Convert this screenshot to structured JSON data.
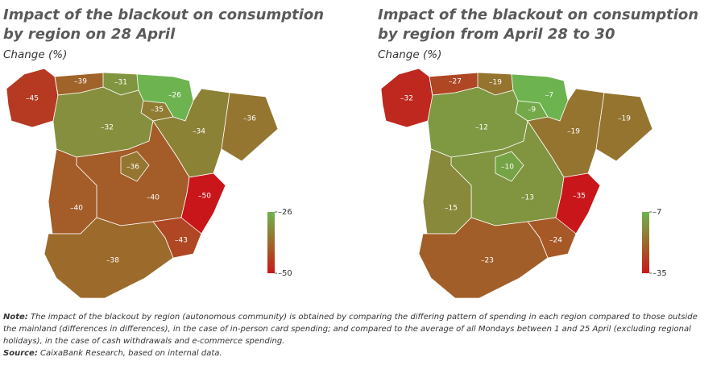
{
  "maps": [
    {
      "title": [
        "Impact of the blackout on consumption",
        "by region on 28 April"
      ],
      "subtitle": "Change (%)",
      "values": [
        -45,
        -39,
        -31,
        -26,
        -35,
        -32,
        -34,
        -36,
        -40,
        -36,
        -50,
        -40,
        -43,
        -38
      ],
      "value_labels": [
        "–45",
        "–39",
        "–31",
        "–26",
        "–35",
        "–32",
        "–34",
        "–36",
        "–40",
        "–36",
        "–50",
        "–40",
        "–43",
        "–38"
      ],
      "scale": [
        {
          "value": -50,
          "label": "–50"
        },
        {
          "value": -26,
          "label": "–26"
        }
      ]
    },
    {
      "title": [
        "Impact of the blackout on consumption",
        "by region from April 28 to 30"
      ],
      "subtitle": "Change (%)",
      "values": [
        -32,
        -27,
        -19,
        -7,
        -9,
        -12,
        -19,
        -19,
        -13,
        -10,
        -35,
        -15,
        -24,
        -23
      ],
      "value_labels": [
        "–32",
        "–27",
        "–19",
        "–7",
        "–9",
        "–12",
        "–19",
        "–19",
        "–13",
        "–10",
        "–35",
        "–15",
        "–24",
        "–23"
      ],
      "scale": [
        {
          "value": -35,
          "label": "–35"
        },
        {
          "value": -7,
          "label": "–7"
        }
      ]
    }
  ],
  "colors": [
    "#c9161b",
    "#9c6a2a",
    "#6db34f"
  ],
  "note": {
    "label": "Note:",
    "text": "The impact of the blackout by region (autonomous community) is obtained by comparing the differing pattern of spending in each region compared to those outside the mainland (differences in differences), in the case of in-person card spending; and compared to the average of all Mondays between 1 and 25 April (excluding regional holidays), in the case of cash withdrawals and e-commerce spending."
  },
  "source": {
    "label": "Source:",
    "text": "CaixaBank Research, based on internal data."
  }
}
